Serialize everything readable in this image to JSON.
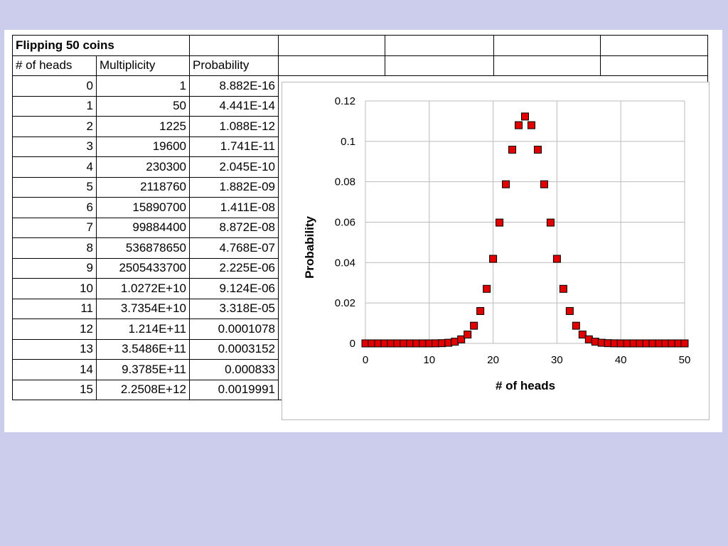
{
  "table": {
    "title": "Flipping 50 coins",
    "headers": [
      "# of heads",
      "Multiplicity",
      "Probability"
    ],
    "rows": [
      [
        "0",
        "1",
        "8.882E-16"
      ],
      [
        "1",
        "50",
        "4.441E-14"
      ],
      [
        "2",
        "1225",
        "1.088E-12"
      ],
      [
        "3",
        "19600",
        "1.741E-11"
      ],
      [
        "4",
        "230300",
        "2.045E-10"
      ],
      [
        "5",
        "2118760",
        "1.882E-09"
      ],
      [
        "6",
        "15890700",
        "1.411E-08"
      ],
      [
        "7",
        "99884400",
        "8.872E-08"
      ],
      [
        "8",
        "536878650",
        "4.768E-07"
      ],
      [
        "9",
        "2505433700",
        "2.225E-06"
      ],
      [
        "10",
        "1.0272E+10",
        "9.124E-06"
      ],
      [
        "11",
        "3.7354E+10",
        "3.318E-05"
      ],
      [
        "12",
        "1.214E+11",
        "0.0001078"
      ],
      [
        "13",
        "3.5486E+11",
        "0.0003152"
      ],
      [
        "14",
        "9.3785E+11",
        "0.000833"
      ],
      [
        "15",
        "2.2508E+12",
        "0.0019991"
      ]
    ]
  },
  "chart_data": {
    "type": "scatter",
    "title": "",
    "xlabel": "# of heads",
    "ylabel": "Probability",
    "xlim": [
      0,
      50
    ],
    "ylim": [
      0,
      0.12
    ],
    "xticks": [
      "0",
      "10",
      "20",
      "30",
      "40",
      "50"
    ],
    "yticks": [
      "0",
      "0.02",
      "0.04",
      "0.06",
      "0.08",
      "0.1",
      "0.12"
    ],
    "grid": true,
    "marker": "square",
    "marker_color": "#e00000",
    "series": [
      {
        "x": [
          0,
          1,
          2,
          3,
          4,
          5,
          6,
          7,
          8,
          9,
          10,
          11,
          12,
          13,
          14,
          15,
          16,
          17,
          18,
          19,
          20,
          21,
          22,
          23,
          24,
          25,
          26,
          27,
          28,
          29,
          30,
          31,
          32,
          33,
          34,
          35,
          36,
          37,
          38,
          39,
          40,
          41,
          42,
          43,
          44,
          45,
          46,
          47,
          48,
          49,
          50
        ],
        "values": [
          0,
          0,
          0,
          0,
          0,
          0,
          0,
          0,
          0,
          0,
          9e-06,
          3.3e-05,
          0.000108,
          0.000315,
          0.000833,
          0.001999,
          0.004373,
          0.008746,
          0.01603,
          0.027,
          0.04186,
          0.0598,
          0.07875,
          0.09587,
          0.108,
          0.1123,
          0.108,
          0.09587,
          0.07875,
          0.0598,
          0.04186,
          0.027,
          0.01603,
          0.008746,
          0.004373,
          0.001999,
          0.000833,
          0.000315,
          0.000108,
          3.3e-05,
          9e-06,
          0,
          0,
          0,
          0,
          0,
          0,
          0,
          0,
          0,
          0
        ]
      }
    ]
  },
  "colors": {
    "background": "#cccced",
    "marker": "#e00000",
    "grid": "#bbbbbb"
  }
}
